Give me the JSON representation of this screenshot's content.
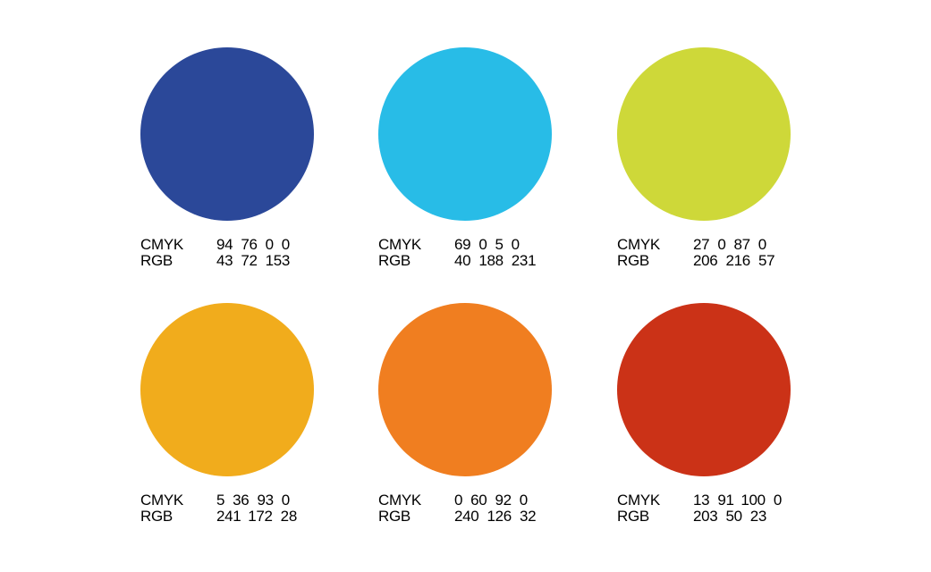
{
  "swatches": [
    {
      "cmyk_label": "CMYK",
      "cmyk": [
        94,
        76,
        0,
        0
      ],
      "rgb_label": "RGB",
      "rgb": [
        43,
        72,
        153
      ]
    },
    {
      "cmyk_label": "CMYK",
      "cmyk": [
        69,
        0,
        5,
        0
      ],
      "rgb_label": "RGB",
      "rgb": [
        40,
        188,
        231
      ]
    },
    {
      "cmyk_label": "CMYK",
      "cmyk": [
        27,
        0,
        87,
        0
      ],
      "rgb_label": "RGB",
      "rgb": [
        206,
        216,
        57
      ]
    },
    {
      "cmyk_label": "CMYK",
      "cmyk": [
        5,
        36,
        93,
        0
      ],
      "rgb_label": "RGB",
      "rgb": [
        241,
        172,
        28
      ]
    },
    {
      "cmyk_label": "CMYK",
      "cmyk": [
        0,
        60,
        92,
        0
      ],
      "rgb_label": "RGB",
      "rgb": [
        240,
        126,
        32
      ]
    },
    {
      "cmyk_label": "CMYK",
      "cmyk": [
        13,
        91,
        100,
        0
      ],
      "rgb_label": "RGB",
      "rgb": [
        203,
        50,
        23
      ]
    }
  ]
}
